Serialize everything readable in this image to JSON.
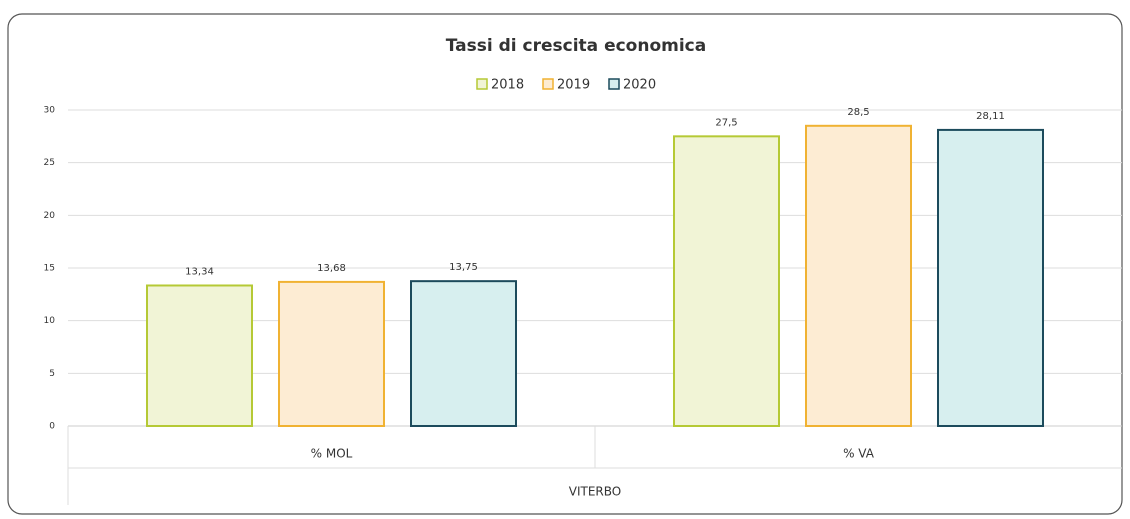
{
  "chart_data": {
    "type": "bar",
    "title": "Tassi di crescita economica",
    "categories": [
      "% MOL",
      "% VA"
    ],
    "group_label": "VITERBO",
    "series": [
      {
        "name": "2018",
        "color": "#b5c935",
        "fill": "#f1f4d6",
        "values": [
          13.34,
          27.5
        ],
        "value_labels": [
          "13,34",
          "27,5"
        ]
      },
      {
        "name": "2019",
        "color": "#f0b232",
        "fill": "#fdecd3",
        "values": [
          13.68,
          28.5
        ],
        "value_labels": [
          "13,68",
          "28,5"
        ]
      },
      {
        "name": "2020",
        "color": "#1c4b5c",
        "fill": "#d7efef",
        "values": [
          13.75,
          28.11
        ],
        "value_labels": [
          "13,75",
          "28,11"
        ]
      }
    ],
    "ylim": [
      0,
      30
    ],
    "yticks": [
      0,
      5,
      10,
      15,
      20,
      25,
      30
    ],
    "grid": true
  }
}
